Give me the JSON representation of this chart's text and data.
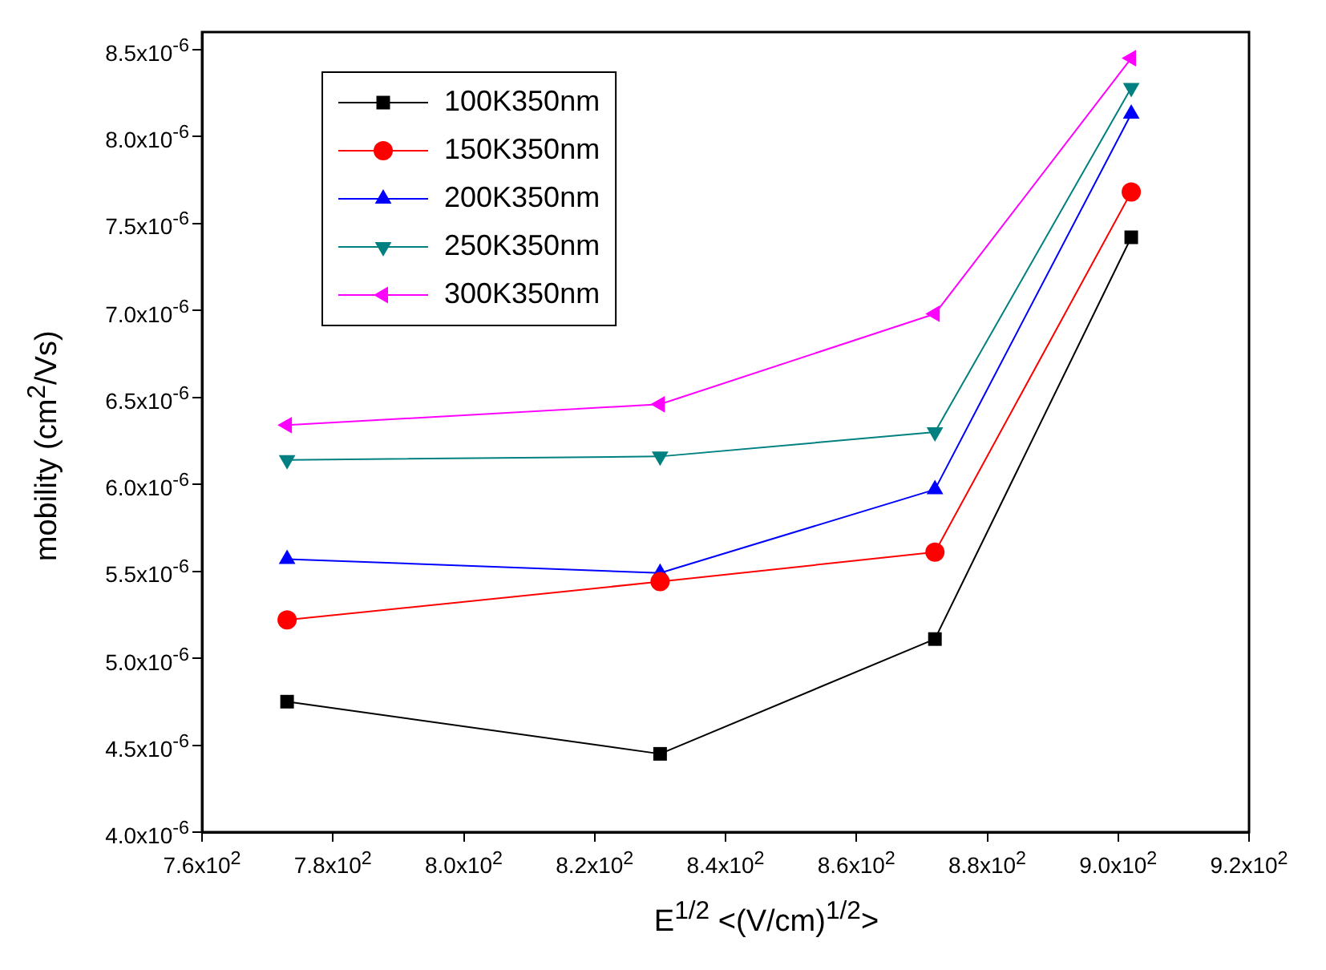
{
  "chart_data": {
    "type": "line",
    "xlabel": "E$^{1/2}$ <(V/cm)$^{1/2}$>",
    "ylabel": "mobility (cm$^{2}$/Vs)",
    "x": [
      773,
      830,
      872,
      902
    ],
    "series": [
      {
        "name": "100K350nm",
        "color": "#000000",
        "marker": "square",
        "values": [
          4.75e-06,
          4.45e-06,
          5.11e-06,
          7.42e-06
        ]
      },
      {
        "name": "150K350nm",
        "color": "#ff0000",
        "marker": "circle",
        "values": [
          5.22e-06,
          5.44e-06,
          5.61e-06,
          7.68e-06
        ]
      },
      {
        "name": "200K350nm",
        "color": "#0000ff",
        "marker": "triangle",
        "values": [
          5.57e-06,
          5.49e-06,
          5.97e-06,
          8.13e-06
        ]
      },
      {
        "name": "250K350nm",
        "color": "#008080",
        "marker": "triangle-down",
        "values": [
          6.14e-06,
          6.16e-06,
          6.3e-06,
          8.28e-06
        ]
      },
      {
        "name": "300K350nm",
        "color": "#ff00ff",
        "marker": "triangle-left",
        "values": [
          6.34e-06,
          6.46e-06,
          6.98e-06,
          8.45e-06
        ]
      }
    ],
    "xlim": [
      760,
      920
    ],
    "xticks": [
      {
        "value": 760,
        "label": "7.6x10$^{2}$"
      },
      {
        "value": 780,
        "label": "7.8x10$^{2}$"
      },
      {
        "value": 800,
        "label": "8.0x10$^{2}$"
      },
      {
        "value": 820,
        "label": "8.2x10$^{2}$"
      },
      {
        "value": 840,
        "label": "8.4x10$^{2}$"
      },
      {
        "value": 860,
        "label": "8.6x10$^{2}$"
      },
      {
        "value": 880,
        "label": "8.8x10$^{2}$"
      },
      {
        "value": 900,
        "label": "9.0x10$^{2}$"
      },
      {
        "value": 920,
        "label": "9.2x10$^{2}$"
      }
    ],
    "ylim": [
      4e-06,
      8.6e-06
    ],
    "yticks": [
      {
        "value": 4e-06,
        "label": "4.0x10$^{-6}$"
      },
      {
        "value": 4.5e-06,
        "label": "4.5x10$^{-6}$"
      },
      {
        "value": 5e-06,
        "label": "5.0x10$^{-6}$"
      },
      {
        "value": 5.5e-06,
        "label": "5.5x10$^{-6}$"
      },
      {
        "value": 6e-06,
        "label": "6.0x10$^{-6}$"
      },
      {
        "value": 6.5e-06,
        "label": "6.5x10$^{-6}$"
      },
      {
        "value": 7e-06,
        "label": "7.0x10$^{-6}$"
      },
      {
        "value": 7.5e-06,
        "label": "7.5x10$^{-6}$"
      },
      {
        "value": 8e-06,
        "label": "8.0x10$^{-6}$"
      },
      {
        "value": 8.5e-06,
        "label": "8.5x10$^{-6}$"
      }
    ],
    "grid": false,
    "legend": "top left",
    "line_style": "solid"
  }
}
